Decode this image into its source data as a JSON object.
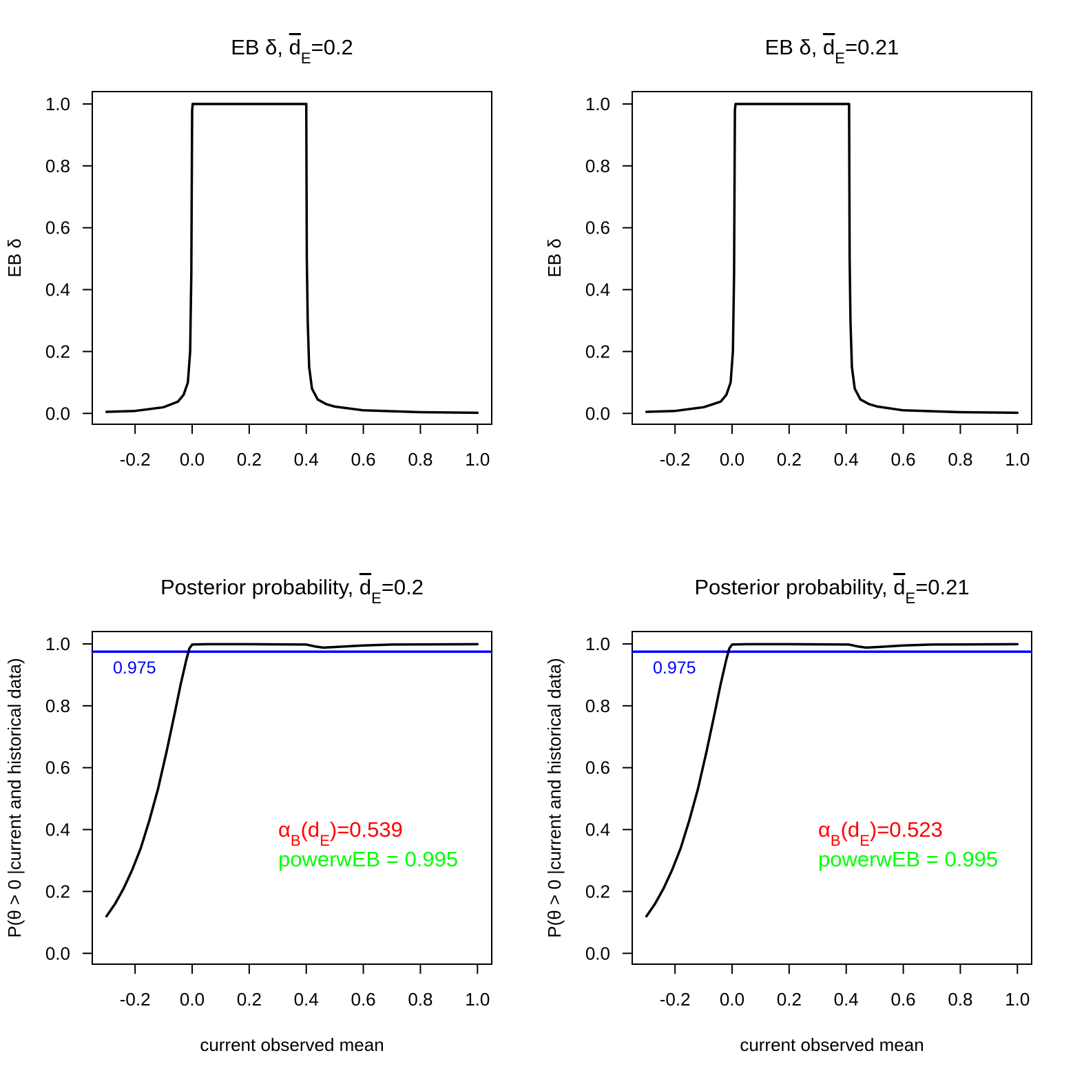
{
  "chart_data": [
    {
      "type": "line",
      "title_main": "EB δ, ",
      "title_d": "d",
      "title_sub": "E",
      "title_val": "=0.2",
      "xlabel": "",
      "ylabel": "EB δ",
      "xlim": [
        -0.35,
        1.05
      ],
      "ylim": [
        -0.035,
        1.04
      ],
      "xticks": [
        "-0.2",
        "0.0",
        "0.2",
        "0.4",
        "0.6",
        "0.8",
        "1.0"
      ],
      "yticks": [
        "0.0",
        "0.2",
        "0.4",
        "0.6",
        "0.8",
        "1.0"
      ],
      "series": [
        {
          "color": "#000000",
          "x": [
            -0.3,
            -0.2,
            -0.1,
            -0.05,
            -0.03,
            -0.015,
            -0.007,
            -0.003,
            0.0,
            0.002,
            0.4,
            0.402,
            0.405,
            0.41,
            0.42,
            0.44,
            0.47,
            0.5,
            0.6,
            0.8,
            1.0
          ],
          "y": [
            0.005,
            0.008,
            0.02,
            0.038,
            0.06,
            0.1,
            0.2,
            0.45,
            0.98,
            1.0,
            1.0,
            0.5,
            0.3,
            0.15,
            0.08,
            0.045,
            0.03,
            0.022,
            0.01,
            0.004,
            0.002
          ]
        }
      ]
    },
    {
      "type": "line",
      "title_main": "EB δ, ",
      "title_d": "d",
      "title_sub": "E",
      "title_val": "=0.21",
      "xlabel": "",
      "ylabel": "EB δ",
      "xlim": [
        -0.35,
        1.05
      ],
      "ylim": [
        -0.035,
        1.04
      ],
      "xticks": [
        "-0.2",
        "0.0",
        "0.2",
        "0.4",
        "0.6",
        "0.8",
        "1.0"
      ],
      "yticks": [
        "0.0",
        "0.2",
        "0.4",
        "0.6",
        "0.8",
        "1.0"
      ],
      "series": [
        {
          "color": "#000000",
          "x": [
            -0.3,
            -0.2,
            -0.1,
            -0.04,
            -0.02,
            -0.005,
            0.003,
            0.007,
            0.01,
            0.012,
            0.41,
            0.412,
            0.415,
            0.42,
            0.43,
            0.45,
            0.48,
            0.51,
            0.6,
            0.8,
            1.0
          ],
          "y": [
            0.005,
            0.008,
            0.02,
            0.038,
            0.06,
            0.1,
            0.2,
            0.45,
            0.98,
            1.0,
            1.0,
            0.5,
            0.3,
            0.15,
            0.08,
            0.045,
            0.03,
            0.022,
            0.01,
            0.004,
            0.002
          ]
        }
      ]
    },
    {
      "type": "line",
      "title_main": "Posterior probability, ",
      "title_d": "d",
      "title_sub": "E",
      "title_val": "=0.2",
      "xlabel": "current observed mean",
      "ylabel": "P(θ > 0 |current and historical data)",
      "xlim": [
        -0.35,
        1.05
      ],
      "ylim": [
        -0.035,
        1.04
      ],
      "xticks": [
        "-0.2",
        "0.0",
        "0.2",
        "0.4",
        "0.6",
        "0.8",
        "1.0"
      ],
      "yticks": [
        "0.0",
        "0.2",
        "0.4",
        "0.6",
        "0.8",
        "1.0"
      ],
      "reference_line": {
        "y": 0.975,
        "label": "0.975",
        "color": "#0000ff"
      },
      "annotations": [
        {
          "sym": "α",
          "sub": "B",
          "mid": "(d",
          "sub2": "E",
          "tail": ")=0.539",
          "color": "#ff0000"
        },
        {
          "text": "powerwEB =  0.995",
          "color": "#00ff00"
        }
      ],
      "series": [
        {
          "color": "#000000",
          "x": [
            -0.3,
            -0.27,
            -0.24,
            -0.21,
            -0.18,
            -0.15,
            -0.12,
            -0.09,
            -0.06,
            -0.04,
            -0.02,
            -0.01,
            0.0,
            0.05,
            0.2,
            0.4,
            0.43,
            0.46,
            0.5,
            0.6,
            0.7,
            1.0
          ],
          "y": [
            0.12,
            0.16,
            0.21,
            0.27,
            0.34,
            0.43,
            0.53,
            0.65,
            0.78,
            0.87,
            0.95,
            0.985,
            0.998,
            0.999,
            0.999,
            0.998,
            0.992,
            0.988,
            0.99,
            0.995,
            0.998,
            0.999
          ]
        }
      ]
    },
    {
      "type": "line",
      "title_main": "Posterior probability, ",
      "title_d": "d",
      "title_sub": "E",
      "title_val": "=0.21",
      "xlabel": "current observed mean",
      "ylabel": "P(θ > 0 |current and historical data)",
      "xlim": [
        -0.35,
        1.05
      ],
      "ylim": [
        -0.035,
        1.04
      ],
      "xticks": [
        "-0.2",
        "0.0",
        "0.2",
        "0.4",
        "0.6",
        "0.8",
        "1.0"
      ],
      "yticks": [
        "0.0",
        "0.2",
        "0.4",
        "0.6",
        "0.8",
        "1.0"
      ],
      "reference_line": {
        "y": 0.975,
        "label": "0.975",
        "color": "#0000ff"
      },
      "annotations": [
        {
          "sym": "α",
          "sub": "B",
          "mid": "(d",
          "sub2": "E",
          "tail": ")=0.523",
          "color": "#ff0000"
        },
        {
          "text": "powerwEB =  0.995",
          "color": "#00ff00"
        }
      ],
      "series": [
        {
          "color": "#000000",
          "x": [
            -0.3,
            -0.27,
            -0.24,
            -0.21,
            -0.18,
            -0.15,
            -0.12,
            -0.09,
            -0.06,
            -0.04,
            -0.02,
            -0.01,
            0.0,
            0.05,
            0.2,
            0.41,
            0.44,
            0.47,
            0.51,
            0.6,
            0.7,
            1.0
          ],
          "y": [
            0.12,
            0.16,
            0.21,
            0.27,
            0.34,
            0.43,
            0.53,
            0.65,
            0.78,
            0.87,
            0.95,
            0.985,
            0.998,
            0.999,
            0.999,
            0.998,
            0.992,
            0.988,
            0.99,
            0.995,
            0.998,
            0.999
          ]
        }
      ]
    }
  ]
}
